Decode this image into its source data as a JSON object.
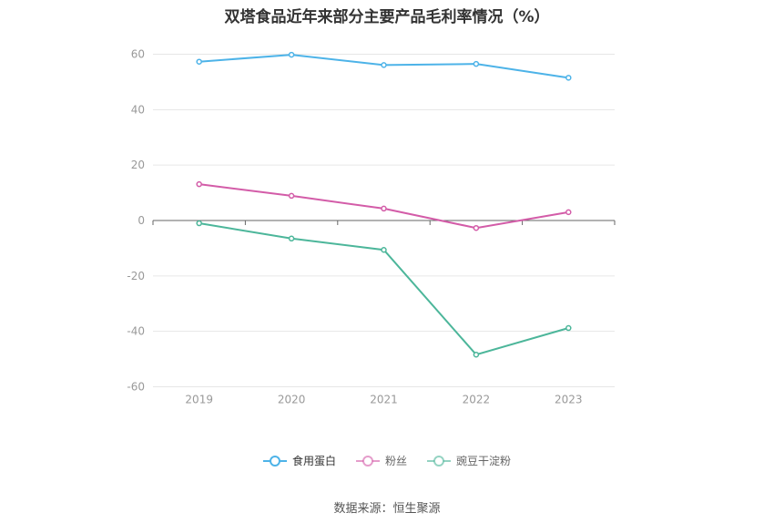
{
  "chart_data": {
    "type": "line",
    "title": "双塔食品近年来部分主要产品毛利率情况（%）",
    "xlabel": "",
    "ylabel": "",
    "x": [
      "2019",
      "2020",
      "2021",
      "2022",
      "2023"
    ],
    "yticks": [
      60,
      40,
      20,
      0,
      -20,
      -40,
      -60
    ],
    "ylim": [
      -60,
      60
    ],
    "grid": true,
    "legend_placement": "bottom",
    "series": [
      {
        "name": "食用蛋白",
        "color": "#4db3e8",
        "values": [
          57.3,
          59.8,
          56.1,
          56.5,
          51.5
        ]
      },
      {
        "name": "粉丝",
        "color": "#d35ca8",
        "values": [
          13.1,
          8.9,
          4.3,
          -2.7,
          3.0
        ]
      },
      {
        "name": "豌豆干淀粉",
        "color": "#4cb69a",
        "values": [
          -1.0,
          -6.5,
          -10.6,
          -48.4,
          -38.8
        ]
      }
    ]
  },
  "source": "数据来源：恒生聚源"
}
